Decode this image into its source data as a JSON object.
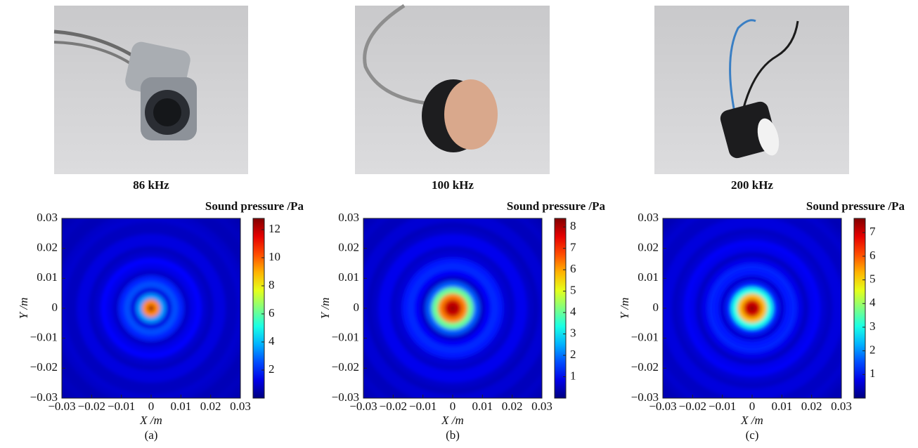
{
  "chart_data": [
    {
      "type": "heatmap",
      "photo_caption": "86 kHz",
      "colorbar_label": "Sound pressure /Pa",
      "xlabel": "X /m",
      "ylabel": "Y /m",
      "caption": "(a)",
      "colormap": "jet",
      "xlim": [
        -0.03,
        0.03
      ],
      "ylim": [
        -0.03,
        0.03
      ],
      "xticks": [
        {
          "value": -0.03,
          "label": "−0.03"
        },
        {
          "value": -0.02,
          "label": "−0.02"
        },
        {
          "value": -0.01,
          "label": "−0.01"
        },
        0,
        0.01,
        0.02,
        0.03
      ],
      "yticks": [
        {
          "value": -0.03,
          "label": "−0.03"
        },
        {
          "value": -0.02,
          "label": "−0.02"
        },
        {
          "value": -0.01,
          "label": "−0.01"
        },
        0,
        0.01,
        0.02,
        0.03
      ],
      "clim": [
        0,
        12.8
      ],
      "cticks": [
        2,
        4,
        6,
        8,
        10,
        12
      ],
      "r": [
        0,
        0.002,
        0.004,
        0.006,
        0.008,
        0.01,
        0.012,
        0.014,
        0.016,
        0.018,
        0.02,
        0.022,
        0.024,
        0.026,
        0.028,
        0.03,
        0.032,
        0.034,
        0.036,
        0.038,
        0.04,
        0.042
      ],
      "values": [
        12.5,
        9.5,
        3.5,
        1.2,
        2.6,
        2.0,
        0.9,
        1.3,
        1.6,
        1.0,
        0.8,
        1.2,
        1.2,
        0.8,
        0.8,
        1.0,
        0.9,
        0.7,
        0.7,
        0.8,
        0.7,
        0.6
      ]
    },
    {
      "type": "heatmap",
      "photo_caption": "100 kHz",
      "colorbar_label": "Sound pressure /Pa",
      "xlabel": "X /m",
      "ylabel": "Y /m",
      "caption": "(b)",
      "colormap": "jet",
      "xlim": [
        -0.03,
        0.03
      ],
      "ylim": [
        -0.03,
        0.03
      ],
      "xticks": [
        {
          "value": -0.03,
          "label": "−0.03"
        },
        {
          "value": -0.02,
          "label": "−0.02"
        },
        {
          "value": -0.01,
          "label": "−0.01"
        },
        0,
        0.01,
        0.02,
        0.03
      ],
      "yticks": [
        {
          "value": -0.03,
          "label": "−0.03"
        },
        {
          "value": -0.02,
          "label": "−0.02"
        },
        {
          "value": -0.01,
          "label": "−0.01"
        },
        0,
        0.01,
        0.02,
        0.03
      ],
      "clim": [
        0,
        8.4
      ],
      "cticks": [
        1,
        2,
        3,
        4,
        5,
        6,
        7,
        8
      ],
      "r": [
        0,
        0.002,
        0.004,
        0.006,
        0.008,
        0.01,
        0.012,
        0.014,
        0.016,
        0.018,
        0.02,
        0.022,
        0.024,
        0.026,
        0.028,
        0.03,
        0.032,
        0.034,
        0.036,
        0.038,
        0.04,
        0.042
      ],
      "values": [
        8.3,
        7.8,
        6.3,
        4.0,
        1.8,
        0.6,
        1.0,
        1.4,
        1.2,
        0.7,
        0.6,
        0.9,
        0.9,
        0.6,
        0.5,
        0.7,
        0.7,
        0.5,
        0.5,
        0.6,
        0.5,
        0.4
      ]
    },
    {
      "type": "heatmap",
      "photo_caption": "200 kHz",
      "colorbar_label": "Sound pressure /Pa",
      "xlabel": "X /m",
      "ylabel": "Y /m",
      "caption": "(c)",
      "colormap": "jet",
      "xlim": [
        -0.03,
        0.03
      ],
      "ylim": [
        -0.03,
        0.03
      ],
      "xticks": [
        {
          "value": -0.03,
          "label": "−0.03"
        },
        {
          "value": -0.02,
          "label": "−0.02"
        },
        {
          "value": -0.01,
          "label": "−0.01"
        },
        0,
        0.01,
        0.02,
        0.03
      ],
      "yticks": [
        {
          "value": -0.03,
          "label": "−0.03"
        },
        {
          "value": -0.02,
          "label": "−0.02"
        },
        {
          "value": -0.01,
          "label": "−0.01"
        },
        0,
        0.01,
        0.02,
        0.03
      ],
      "clim": [
        0,
        7.6
      ],
      "cticks": [
        1,
        2,
        3,
        4,
        5,
        6,
        7
      ],
      "r": [
        0,
        0.002,
        0.004,
        0.006,
        0.008,
        0.01,
        0.012,
        0.014,
        0.016,
        0.018,
        0.02,
        0.022,
        0.024,
        0.026,
        0.028,
        0.03,
        0.032,
        0.034,
        0.036,
        0.038,
        0.04,
        0.042
      ],
      "values": [
        7.6,
        7.0,
        5.3,
        3.0,
        1.2,
        0.6,
        1.1,
        1.2,
        0.8,
        0.5,
        0.8,
        0.9,
        0.6,
        0.5,
        0.7,
        0.7,
        0.5,
        0.5,
        0.6,
        0.5,
        0.4,
        0.4
      ]
    }
  ]
}
